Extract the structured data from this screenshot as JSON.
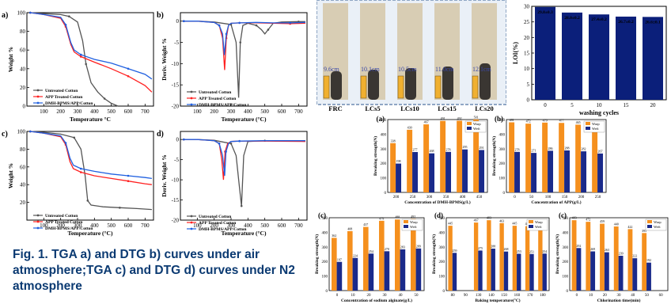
{
  "caption": "Fig. 1. TGA a) and DTG b) curves under air atmosphere;TGA c) and DTG d) curves under N2 atmosphere",
  "chart_data": [
    {
      "id": "a",
      "type": "line",
      "panel_label": "a)",
      "xlabel": "Temperature °C",
      "ylabel": "Weight %",
      "xlim": [
        0,
        750
      ],
      "ylim": [
        0,
        100
      ],
      "xticks": [
        "100",
        "200",
        "300",
        "400",
        "500",
        "600",
        "700"
      ],
      "yticks": [
        "0",
        "20",
        "40",
        "60",
        "80",
        "100"
      ],
      "legend": "bottom-left",
      "series": [
        {
          "name": "Untreated Cotton",
          "color": "#555555",
          "x": [
            20,
            100,
            200,
            250,
            300,
            330,
            350,
            380,
            420,
            460,
            500,
            540
          ],
          "y": [
            100,
            99,
            98,
            96,
            90,
            70,
            45,
            25,
            15,
            8,
            3,
            0
          ]
        },
        {
          "name": "APP Treated Cotton",
          "color": "#ff2020",
          "x": [
            20,
            100,
            200,
            230,
            260,
            280,
            320,
            400,
            500,
            600,
            700,
            740
          ],
          "y": [
            100,
            98,
            94,
            85,
            66,
            58,
            53,
            47,
            40,
            32,
            22,
            15
          ]
        },
        {
          "name": "DMH-BPMS/APP/Cotton",
          "color": "#2060e0",
          "x": [
            20,
            100,
            200,
            230,
            260,
            280,
            320,
            400,
            500,
            600,
            700,
            740
          ],
          "y": [
            100,
            98,
            95,
            87,
            68,
            60,
            55,
            50,
            46,
            40,
            34,
            29
          ]
        }
      ]
    },
    {
      "id": "b",
      "type": "line",
      "panel_label": "b)",
      "xlabel": "Temperature (°C)",
      "ylabel": "Deriv. Weight %",
      "xlim": [
        0,
        750
      ],
      "ylim": [
        -20,
        2
      ],
      "xticks": [
        "100",
        "200",
        "300",
        "400",
        "500",
        "600",
        "700"
      ],
      "yticks": [
        "0",
        "-5",
        "-10",
        "-15",
        "-20"
      ],
      "legend": "bottom-left",
      "series": [
        {
          "name": "Untreated Cotton",
          "color": "#555555",
          "x": [
            20,
            100,
            200,
            300,
            330,
            345,
            355,
            370,
            400,
            450,
            480,
            500,
            520,
            550,
            600,
            700,
            740
          ],
          "y": [
            0,
            0,
            -0.2,
            -0.8,
            -5,
            -18,
            -5,
            -1,
            -0.5,
            -1,
            -2,
            -3,
            -2,
            -0.5,
            -0.2,
            -0.1,
            -0.1
          ]
        },
        {
          "name": "APP Treated Cotton",
          "color": "#ff2020",
          "x": [
            20,
            100,
            200,
            230,
            250,
            262,
            272,
            285,
            300,
            350,
            450,
            550,
            650,
            740
          ],
          "y": [
            0,
            0,
            -0.3,
            -1,
            -4,
            -11.5,
            -4,
            -1,
            -0.5,
            -0.4,
            -0.4,
            -0.5,
            -0.6,
            -0.5
          ]
        },
        {
          "name": "DMH-BPMS/APP/Cotton",
          "color": "#2060e0",
          "x": [
            20,
            100,
            200,
            230,
            250,
            260,
            272,
            285,
            300,
            350,
            450,
            550,
            650,
            740
          ],
          "y": [
            0,
            0,
            -0.3,
            -1,
            -3,
            -8,
            -3,
            -1,
            -0.5,
            -0.4,
            -0.3,
            -0.4,
            -0.4,
            -0.3
          ]
        }
      ]
    },
    {
      "id": "c",
      "type": "line",
      "panel_label": "c)",
      "xlabel": "Temperature (°C)",
      "ylabel": "Weight %",
      "xlim": [
        0,
        750
      ],
      "ylim": [
        0,
        100
      ],
      "xticks": [
        "100",
        "200",
        "300",
        "400",
        "500",
        "600",
        "700"
      ],
      "yticks": [
        "20",
        "40",
        "60",
        "80",
        "100"
      ],
      "legend": "bottom-left",
      "series": [
        {
          "name": "Untreated Cotton",
          "color": "#555555",
          "x": [
            20,
            100,
            200,
            280,
            320,
            345,
            360,
            380,
            450,
            550,
            650,
            740
          ],
          "y": [
            100,
            99,
            97,
            93,
            80,
            50,
            22,
            17,
            15,
            14,
            13,
            12
          ]
        },
        {
          "name": "APP Treated Cotton",
          "color": "#ff2020",
          "x": [
            20,
            100,
            200,
            230,
            255,
            275,
            320,
            400,
            500,
            600,
            700,
            740
          ],
          "y": [
            100,
            98,
            94,
            85,
            66,
            58,
            54,
            50,
            47,
            44,
            41,
            40
          ]
        },
        {
          "name": "DMH-BPMS/APP/Cotton",
          "color": "#2060e0",
          "x": [
            20,
            100,
            200,
            230,
            255,
            275,
            320,
            400,
            500,
            600,
            700,
            740
          ],
          "y": [
            100,
            98,
            95,
            87,
            70,
            62,
            58,
            55,
            52,
            50,
            48,
            47
          ]
        }
      ]
    },
    {
      "id": "d",
      "type": "line",
      "panel_label": "d)",
      "xlabel": "Temperature (°C)",
      "ylabel": "Deriv. Weight %",
      "xlim": [
        0,
        750
      ],
      "ylim": [
        -20,
        2
      ],
      "xticks": [
        "100",
        "200",
        "300",
        "400",
        "500",
        "600",
        "700"
      ],
      "yticks": [
        "0",
        "-5",
        "-10",
        "-15",
        "-20"
      ],
      "legend": "bottom-left",
      "series": [
        {
          "name": "Untreated Cotton",
          "color": "#555555",
          "x": [
            20,
            100,
            200,
            300,
            330,
            350,
            362,
            375,
            400,
            500,
            600,
            740
          ],
          "y": [
            0,
            0,
            -0.2,
            -1,
            -4,
            -12,
            -16.5,
            -4,
            -0.5,
            -0.3,
            -0.3,
            -0.3
          ]
        },
        {
          "name": "APP Treated Cotton",
          "color": "#ff2020",
          "x": [
            20,
            100,
            200,
            230,
            245,
            255,
            265,
            280,
            300,
            350,
            500,
            740
          ],
          "y": [
            0,
            0,
            -0.3,
            -1,
            -5,
            -10,
            -3,
            -1,
            -0.5,
            -0.4,
            -0.4,
            -0.5
          ]
        },
        {
          "name": "DMH-BPMS/APP/Cotton",
          "color": "#2060e0",
          "x": [
            20,
            100,
            200,
            230,
            250,
            262,
            270,
            285,
            300,
            350,
            500,
            740
          ],
          "y": [
            0,
            0,
            -0.3,
            -1,
            -4,
            -9,
            -3,
            -1,
            -0.5,
            -0.4,
            -0.3,
            -0.3
          ]
        }
      ]
    },
    {
      "id": "loi",
      "type": "bar",
      "panel_label": "",
      "xlabel": "washing cycles",
      "ylabel": "LOI(%)",
      "categories": [
        "0",
        "5",
        "10",
        "15",
        "20"
      ],
      "values": [
        29.8,
        28.0,
        27.4,
        26.7,
        26.6
      ],
      "labels": [
        "29.8±0.3",
        "28.0±0.2",
        "27.4±0.2",
        "26.7±0.2",
        "26.6±0.1"
      ],
      "ylim": [
        0,
        30
      ],
      "yticks": [
        "0",
        "5",
        "10",
        "15",
        "20",
        "25",
        "30"
      ],
      "color": "#0b1f7a"
    },
    {
      "id": "s_a",
      "type": "bar",
      "panel_label": "(a)",
      "xlabel": "Concentration of DMH-BPMS(g/L)",
      "ylabel": "Breaking strength(N)",
      "categories": [
        "200",
        "250",
        "300",
        "350",
        "400",
        "450"
      ],
      "ylim": [
        0,
        500
      ],
      "yticks": [
        "0",
        "100",
        "200",
        "300",
        "400",
        "500"
      ],
      "series": [
        {
          "name": "Warp",
          "color": "#f5901e",
          "values": [
            338,
            430,
            467,
            491,
            492,
            501
          ]
        },
        {
          "name": "Weft",
          "color": "#1a2a8a",
          "values": [
            198,
            277,
            268,
            278,
            295,
            291
          ]
        }
      ]
    },
    {
      "id": "s_b",
      "type": "bar",
      "panel_label": "(b)",
      "xlabel": "Concentration of APP(g/L)",
      "ylabel": "Breaking strength(N)",
      "categories": [
        "0",
        "50",
        "100",
        "150",
        "200",
        "250"
      ],
      "ylim": [
        0,
        500
      ],
      "yticks": [
        "0",
        "100",
        "200",
        "300",
        "400",
        "500"
      ],
      "series": [
        {
          "name": "Warp",
          "color": "#f5901e",
          "values": [
            481,
            472,
            479,
            477,
            465,
            459
          ]
        },
        {
          "name": "Weft",
          "color": "#1a2a8a",
          "values": [
            278,
            271,
            286,
            288,
            282,
            267
          ]
        }
      ]
    },
    {
      "id": "s_c1",
      "type": "bar",
      "panel_label": "(c)",
      "xlabel": "Concentration of sodium alginate(g/L)",
      "ylabel": "Breaking strength(N)",
      "categories": [
        "0",
        "10",
        "20",
        "30",
        "40",
        "50"
      ],
      "ylim": [
        0,
        500
      ],
      "yticks": [
        "0",
        "100",
        "200",
        "300",
        "400",
        "500"
      ],
      "series": [
        {
          "name": "Warp",
          "color": "#f5901e",
          "values": [
            362,
            408,
            437,
            479,
            488,
            492
          ]
        },
        {
          "name": "Weft",
          "color": "#1a2a8a",
          "values": [
            197,
            224,
            254,
            270,
            283,
            289
          ]
        }
      ]
    },
    {
      "id": "s_d",
      "type": "bar",
      "panel_label": "(d)",
      "xlabel": "Baking temperature(°C)",
      "ylabel": "Breaking strength(N)",
      "categories": [
        "80",
        "90",
        "130",
        "140",
        "150",
        "160",
        "170",
        "180"
      ],
      "ylim": [
        0,
        500
      ],
      "yticks": [
        "0",
        "100",
        "200",
        "300",
        "400",
        "500"
      ],
      "series": [
        {
          "name": "Warp",
          "color": "#f5901e",
          "values": [
            445,
            null,
            467,
            483,
            463,
            445,
            442,
            429
          ]
        },
        {
          "name": "Weft",
          "color": "#1a2a8a",
          "values": [
            259,
            null,
            275,
            288,
            268,
            253,
            251,
            254
          ]
        }
      ]
    },
    {
      "id": "s_c2",
      "type": "bar",
      "panel_label": "(c)",
      "xlabel": "Chlorination time(min)",
      "ylabel": "Breaking strength(N)",
      "categories": [
        "0",
        "10",
        "20",
        "30",
        "40",
        "50",
        "60"
      ],
      "ylim": [
        0,
        500
      ],
      "yticks": [
        "0",
        "100",
        "200",
        "300",
        "400",
        "500"
      ],
      "series": [
        {
          "name": "Warp",
          "color": "#f5901e",
          "values": [
            483,
            472,
            459,
            440,
            422,
            395,
            null
          ]
        },
        {
          "name": "Weft",
          "color": "#1a2a8a",
          "values": [
            292,
            269,
            263,
            239,
            222,
            192,
            null
          ]
        }
      ]
    }
  ],
  "photo": {
    "strip_labels": [
      "FRC",
      "LCs5",
      "LCs10",
      "LCs15",
      "LCs20"
    ],
    "lengths": [
      "9.6cm",
      "10.1cm",
      "10.5cm",
      "11.0cm",
      "12.1cm"
    ]
  }
}
